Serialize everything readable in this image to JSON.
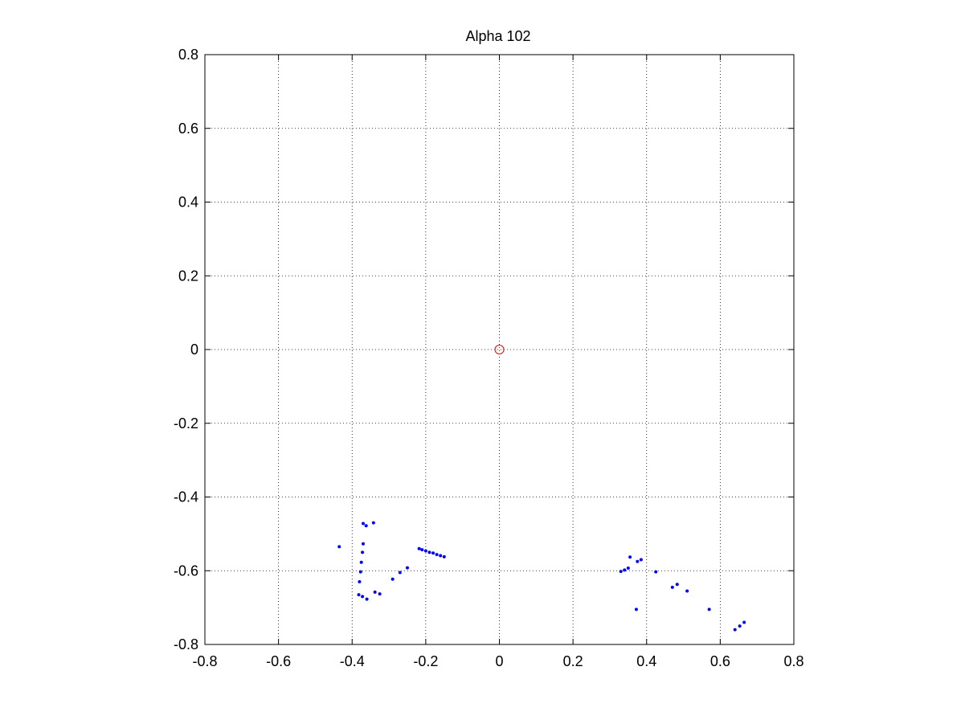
{
  "chart_data": {
    "type": "scatter",
    "title": "Alpha 102",
    "xlabel": "",
    "ylabel": "",
    "xlim": [
      -0.8,
      0.8
    ],
    "ylim": [
      -0.8,
      0.8
    ],
    "x_ticks": [
      -0.8,
      -0.6,
      -0.4,
      -0.2,
      0,
      0.2,
      0.4,
      0.6,
      0.8
    ],
    "y_ticks": [
      -0.8,
      -0.6,
      -0.4,
      -0.2,
      0,
      0.2,
      0.4,
      0.6,
      0.8
    ],
    "x_tick_labels": [
      "-0.8",
      "-0.6",
      "-0.4",
      "-0.2",
      "0",
      "0.2",
      "0.4",
      "0.6",
      "0.8"
    ],
    "y_tick_labels": [
      "-0.8",
      "-0.6",
      "-0.4",
      "-0.2",
      "0",
      "0.2",
      "0.4",
      "0.6",
      "0.8"
    ],
    "grid": true,
    "series": [
      {
        "marker": "dot",
        "color": "#0000ff",
        "points": [
          [
            -0.435,
            -0.535
          ],
          [
            -0.37,
            -0.472
          ],
          [
            -0.362,
            -0.478
          ],
          [
            -0.342,
            -0.47
          ],
          [
            -0.37,
            -0.527
          ],
          [
            -0.372,
            -0.55
          ],
          [
            -0.375,
            -0.577
          ],
          [
            -0.377,
            -0.603
          ],
          [
            -0.38,
            -0.63
          ],
          [
            -0.382,
            -0.665
          ],
          [
            -0.372,
            -0.67
          ],
          [
            -0.36,
            -0.677
          ],
          [
            -0.338,
            -0.658
          ],
          [
            -0.325,
            -0.663
          ],
          [
            -0.29,
            -0.623
          ],
          [
            -0.27,
            -0.605
          ],
          [
            -0.25,
            -0.592
          ],
          [
            -0.218,
            -0.54
          ],
          [
            -0.21,
            -0.543
          ],
          [
            -0.2,
            -0.546
          ],
          [
            -0.19,
            -0.55
          ],
          [
            -0.18,
            -0.552
          ],
          [
            -0.17,
            -0.556
          ],
          [
            -0.16,
            -0.559
          ],
          [
            -0.15,
            -0.562
          ],
          [
            0.33,
            -0.602
          ],
          [
            0.34,
            -0.598
          ],
          [
            0.35,
            -0.593
          ],
          [
            0.355,
            -0.563
          ],
          [
            0.375,
            -0.575
          ],
          [
            0.385,
            -0.57
          ],
          [
            0.372,
            -0.705
          ],
          [
            0.425,
            -0.603
          ],
          [
            0.47,
            -0.645
          ],
          [
            0.483,
            -0.637
          ],
          [
            0.51,
            -0.655
          ],
          [
            0.57,
            -0.705
          ],
          [
            0.64,
            -0.76
          ],
          [
            0.653,
            -0.75
          ],
          [
            0.665,
            -0.74
          ]
        ]
      },
      {
        "marker": "circle",
        "color": "#ff0000",
        "points": [
          [
            0,
            0
          ]
        ]
      }
    ]
  }
}
